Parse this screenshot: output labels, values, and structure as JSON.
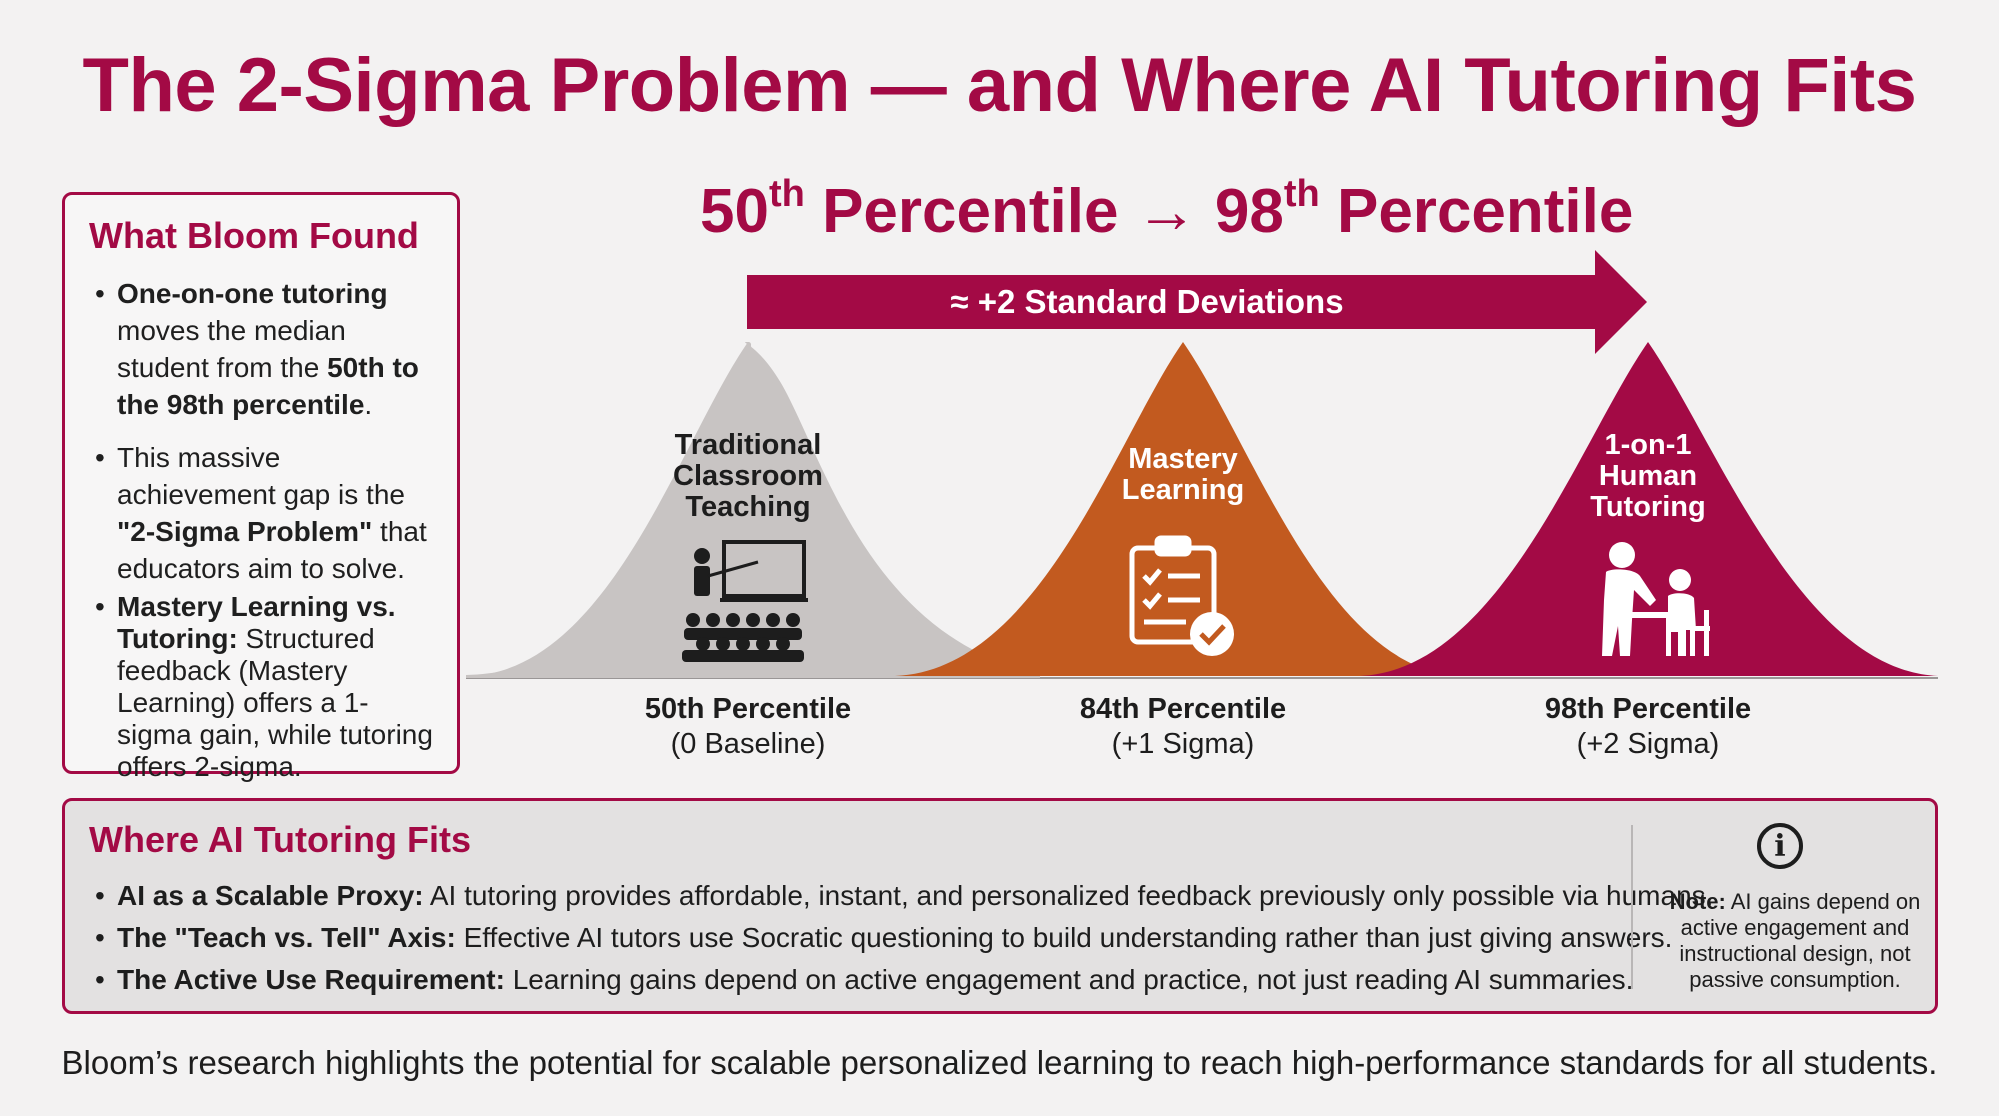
{
  "title": "The 2-Sigma Problem — and Where AI Tutoring Fits",
  "headline": {
    "from_number": "50",
    "from_suffix": "th",
    "from_word": " Percentile ",
    "arrow": "→",
    "to_number": " 98",
    "to_suffix": "th",
    "to_word": " Percentile"
  },
  "arrow_label": "≈ +2 Standard Deviations",
  "found_panel": {
    "heading": "What Bloom Found",
    "item1": {
      "b1": "One-on-one tutoring",
      "t1": " moves the median student from the ",
      "b2": "50th to the 98th percentile",
      "t2": "."
    },
    "item2": {
      "t1": "This massive achievement gap is the ",
      "b1": "\"2-Sigma Problem\"",
      "t2": " that educators aim to solve."
    },
    "item3": {
      "b1": "Mastery Learning vs. Tutoring:",
      "t1": " Structured feedback (Mastery Learning) offers a 1-sigma gain, while tutoring offers 2-sigma."
    }
  },
  "curves": [
    {
      "line1": "Traditional",
      "line2": "Classroom",
      "line3": "Teaching",
      "pct": "50th Percentile",
      "sub": "(0 Baseline)",
      "color": "#c8c4c3",
      "icon": "teacher-classroom-icon"
    },
    {
      "line1": "Mastery",
      "line2": "Learning",
      "line3": "",
      "pct": "84th Percentile",
      "sub": "(+1 Sigma)",
      "color": "#c25a1f",
      "icon": "clipboard-check-icon"
    },
    {
      "line1": "1-on-1",
      "line2": "Human",
      "line3": "Tutoring",
      "pct": "98th Percentile",
      "sub": "(+2 Sigma)",
      "color": "#a30a45",
      "icon": "tutor-student-icon"
    }
  ],
  "ai_panel": {
    "heading": "Where AI Tutoring Fits",
    "items": [
      {
        "b": "AI as a Scalable Proxy:",
        "t": " AI tutoring provides affordable, instant, and personalized feedback previously only possible via humans."
      },
      {
        "b": "The \"Teach vs. Tell\" Axis:",
        "t": " Effective AI tutors use Socratic questioning to build understanding rather than just giving answers."
      },
      {
        "b": "The Active Use Requirement:",
        "t": " Learning gains depend on active engagement and practice, not just reading AI summaries."
      }
    ],
    "note_bold": "Note:",
    "note_text": " AI gains depend on active engagement and instructional design, not passive consumption.",
    "info_icon": "info-icon"
  },
  "footer": "Bloom’s research highlights the potential for scalable personalized learning to reach high-performance standards for all students.",
  "colors": {
    "accent": "#a30a45",
    "orange": "#c25a1f",
    "gray": "#c8c4c3"
  }
}
